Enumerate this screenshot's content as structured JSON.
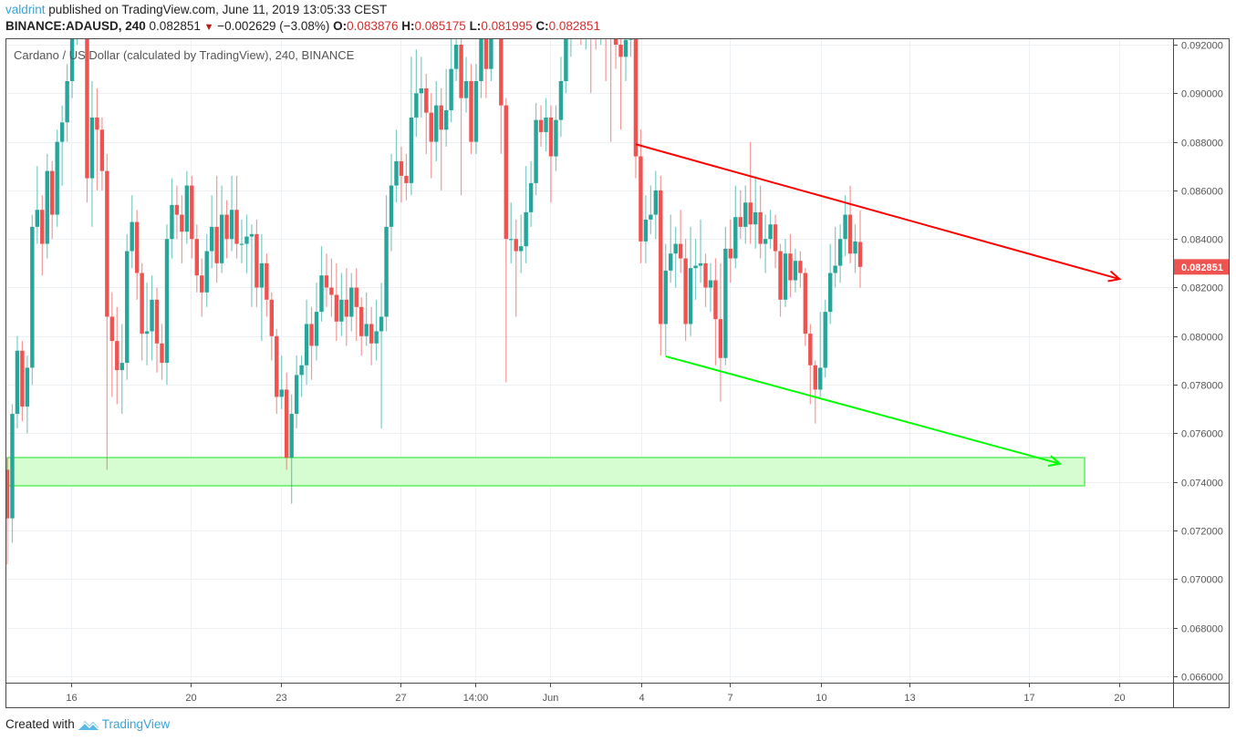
{
  "header": {
    "user": "valdrint",
    "published": "published on TradingView.com, June 11, 2019 13:05:33 CEST",
    "symbol": "BINANCE:ADAUSD, 240",
    "last": "0.082851",
    "change": "−0.002629 (−3.08%)",
    "o_label": "O:",
    "o_value": "0.083876",
    "h_label": "H:",
    "h_value": "0.085175",
    "l_label": "L:",
    "l_value": "0.081995",
    "c_label": "C:",
    "c_value": "0.082851",
    "down_icon": "triangle-down-icon"
  },
  "footer": {
    "created_with": "Created with",
    "brand": "TradingView"
  },
  "colors": {
    "up": "#26a69a",
    "down": "#ef5350",
    "grid": "#edf1f6",
    "last_price_bg": "#ef5350",
    "resistance": "#ff0000",
    "support": "#00ff00",
    "zone_fill": "#d6fcd2",
    "zone_border": "#5cef5c"
  },
  "chart_data": {
    "type": "candlestick",
    "title": "Cardano / US Dollar (calculated by TradingView), 240, BINANCE",
    "timeframe": "240",
    "ylim": [
      0.0655,
      0.0925
    ],
    "y_ticks": [
      "0.092000",
      "0.090000",
      "0.088000",
      "0.086000",
      "0.084000",
      "0.082000",
      "0.080000",
      "0.078000",
      "0.076000",
      "0.074000",
      "0.072000",
      "0.070000",
      "0.068000",
      "0.066000"
    ],
    "x_ticks": [
      {
        "label": "16",
        "index": 12.8
      },
      {
        "label": "20",
        "index": 36.8
      },
      {
        "label": "23",
        "index": 54.9
      },
      {
        "label": "27",
        "index": 78.8
      },
      {
        "label": "14:00",
        "index": 93.8
      },
      {
        "label": "Jun",
        "index": 108.8
      },
      {
        "label": "4",
        "index": 127.1
      },
      {
        "label": "7",
        "index": 144.8
      },
      {
        "label": "10",
        "index": 163.1
      },
      {
        "label": "13",
        "index": 180.9
      },
      {
        "label": "17",
        "index": 204.9
      },
      {
        "label": "20",
        "index": 223.0
      }
    ],
    "x_range": [
      -1,
      233
    ],
    "last_price_label": "0.082851",
    "candles_ohlc": [
      [
        0.0745,
        0.075,
        0.0706,
        0.0725
      ],
      [
        0.0725,
        0.0772,
        0.0715,
        0.0768
      ],
      [
        0.0768,
        0.08,
        0.0762,
        0.0794
      ],
      [
        0.0794,
        0.0798,
        0.0765,
        0.0771
      ],
      [
        0.0771,
        0.0792,
        0.076,
        0.0787
      ],
      [
        0.0787,
        0.085,
        0.078,
        0.0845
      ],
      [
        0.0845,
        0.087,
        0.0838,
        0.0852
      ],
      [
        0.0852,
        0.0858,
        0.0825,
        0.0838
      ],
      [
        0.0838,
        0.0875,
        0.0832,
        0.0868
      ],
      [
        0.0868,
        0.0872,
        0.084,
        0.085
      ],
      [
        0.085,
        0.0885,
        0.0845,
        0.088
      ],
      [
        0.088,
        0.0895,
        0.0862,
        0.0888
      ],
      [
        0.0888,
        0.0912,
        0.088,
        0.0905
      ],
      [
        0.0905,
        0.0938,
        0.0898,
        0.093
      ],
      [
        0.093,
        0.0958,
        0.092,
        0.095
      ],
      [
        0.095,
        0.0955,
        0.093,
        0.094
      ],
      [
        0.094,
        0.0945,
        0.0855,
        0.0865
      ],
      [
        0.0865,
        0.0905,
        0.0845,
        0.089
      ],
      [
        0.089,
        0.0902,
        0.086,
        0.0885
      ],
      [
        0.0885,
        0.089,
        0.086,
        0.0868
      ],
      [
        0.0868,
        0.0875,
        0.0745,
        0.0808
      ],
      [
        0.0808,
        0.0818,
        0.0775,
        0.0798
      ],
      [
        0.0798,
        0.0812,
        0.0772,
        0.0786
      ],
      [
        0.0786,
        0.0805,
        0.0768,
        0.0789
      ],
      [
        0.0789,
        0.0842,
        0.0782,
        0.0835
      ],
      [
        0.0835,
        0.0858,
        0.0828,
        0.0847
      ],
      [
        0.0847,
        0.0852,
        0.0815,
        0.0826
      ],
      [
        0.0826,
        0.083,
        0.079,
        0.0801
      ],
      [
        0.0801,
        0.0822,
        0.0788,
        0.0802
      ],
      [
        0.0802,
        0.0825,
        0.079,
        0.0815
      ],
      [
        0.0815,
        0.082,
        0.0785,
        0.0797
      ],
      [
        0.0797,
        0.0805,
        0.0782,
        0.0789
      ],
      [
        0.0789,
        0.0846,
        0.078,
        0.084
      ],
      [
        0.084,
        0.0865,
        0.0832,
        0.0854
      ],
      [
        0.0854,
        0.0862,
        0.084,
        0.085
      ],
      [
        0.085,
        0.0858,
        0.083,
        0.0843
      ],
      [
        0.0843,
        0.0868,
        0.0838,
        0.0862
      ],
      [
        0.0862,
        0.0866,
        0.0832,
        0.084
      ],
      [
        0.084,
        0.0846,
        0.0818,
        0.0825
      ],
      [
        0.0825,
        0.0832,
        0.0808,
        0.0818
      ],
      [
        0.0818,
        0.0842,
        0.0812,
        0.0835
      ],
      [
        0.0835,
        0.0858,
        0.0828,
        0.0845
      ],
      [
        0.0845,
        0.0866,
        0.0822,
        0.083
      ],
      [
        0.083,
        0.0862,
        0.0826,
        0.085
      ],
      [
        0.085,
        0.0856,
        0.0832,
        0.084
      ],
      [
        0.084,
        0.0866,
        0.0835,
        0.0852
      ],
      [
        0.0852,
        0.0866,
        0.0832,
        0.0838
      ],
      [
        0.0838,
        0.0848,
        0.083,
        0.0838
      ],
      [
        0.0838,
        0.085,
        0.0826,
        0.0841
      ],
      [
        0.0841,
        0.0846,
        0.0812,
        0.0842
      ],
      [
        0.0842,
        0.0848,
        0.0812,
        0.082
      ],
      [
        0.082,
        0.0842,
        0.0798,
        0.083
      ],
      [
        0.083,
        0.0834,
        0.0808,
        0.0815
      ],
      [
        0.0815,
        0.0818,
        0.079,
        0.08
      ],
      [
        0.08,
        0.0803,
        0.0768,
        0.0775
      ],
      [
        0.0775,
        0.0792,
        0.077,
        0.0778
      ],
      [
        0.0778,
        0.0785,
        0.0745,
        0.075
      ],
      [
        0.075,
        0.0776,
        0.0731,
        0.0768
      ],
      [
        0.0768,
        0.0792,
        0.0762,
        0.0784
      ],
      [
        0.0784,
        0.0792,
        0.0775,
        0.0788
      ],
      [
        0.0788,
        0.0815,
        0.078,
        0.0805
      ],
      [
        0.0805,
        0.0812,
        0.0782,
        0.0796
      ],
      [
        0.0796,
        0.0822,
        0.079,
        0.081
      ],
      [
        0.081,
        0.0837,
        0.0806,
        0.0825
      ],
      [
        0.0825,
        0.0834,
        0.0812,
        0.082
      ],
      [
        0.082,
        0.0832,
        0.0808,
        0.0817
      ],
      [
        0.0817,
        0.083,
        0.0798,
        0.0806
      ],
      [
        0.0806,
        0.0826,
        0.08,
        0.0815
      ],
      [
        0.0815,
        0.0828,
        0.0796,
        0.0808
      ],
      [
        0.0808,
        0.0826,
        0.0802,
        0.082
      ],
      [
        0.082,
        0.0828,
        0.0798,
        0.0812
      ],
      [
        0.0812,
        0.0816,
        0.0792,
        0.08
      ],
      [
        0.08,
        0.0818,
        0.0796,
        0.0805
      ],
      [
        0.0805,
        0.0812,
        0.0788,
        0.0797
      ],
      [
        0.0797,
        0.0815,
        0.079,
        0.0802
      ],
      [
        0.0802,
        0.0822,
        0.0762,
        0.0808
      ],
      [
        0.0808,
        0.0858,
        0.0802,
        0.0845
      ],
      [
        0.0845,
        0.0875,
        0.0835,
        0.0862
      ],
      [
        0.0862,
        0.0885,
        0.0855,
        0.0872
      ],
      [
        0.0872,
        0.0878,
        0.0855,
        0.0866
      ],
      [
        0.0866,
        0.0875,
        0.0856,
        0.0863
      ],
      [
        0.0863,
        0.0915,
        0.0858,
        0.089
      ],
      [
        0.089,
        0.0918,
        0.0882,
        0.09
      ],
      [
        0.09,
        0.0915,
        0.089,
        0.0902
      ],
      [
        0.0902,
        0.0908,
        0.0875,
        0.0892
      ],
      [
        0.0892,
        0.09,
        0.0865,
        0.088
      ],
      [
        0.088,
        0.0905,
        0.0872,
        0.0895
      ],
      [
        0.0895,
        0.0902,
        0.086,
        0.0885
      ],
      [
        0.0885,
        0.091,
        0.0878,
        0.0893
      ],
      [
        0.0893,
        0.0925,
        0.0888,
        0.091
      ],
      [
        0.091,
        0.0935,
        0.0905,
        0.092
      ],
      [
        0.092,
        0.0925,
        0.0858,
        0.0898
      ],
      [
        0.0898,
        0.0915,
        0.0892,
        0.0905
      ],
      [
        0.0905,
        0.0912,
        0.0875,
        0.088
      ],
      [
        0.088,
        0.0912,
        0.0875,
        0.0905
      ],
      [
        0.0905,
        0.0935,
        0.0898,
        0.0925
      ],
      [
        0.0925,
        0.093,
        0.0898,
        0.091
      ],
      [
        0.091,
        0.094,
        0.0905,
        0.093
      ],
      [
        0.093,
        0.0945,
        0.0925,
        0.0935
      ],
      [
        0.0935,
        0.094,
        0.0875,
        0.0895
      ],
      [
        0.0895,
        0.0898,
        0.0781,
        0.084
      ],
      [
        0.084,
        0.0855,
        0.083,
        0.084
      ],
      [
        0.084,
        0.0848,
        0.0808,
        0.0835
      ],
      [
        0.0835,
        0.085,
        0.0826,
        0.0837
      ],
      [
        0.0837,
        0.087,
        0.083,
        0.0851
      ],
      [
        0.0851,
        0.0872,
        0.0845,
        0.0863
      ],
      [
        0.0863,
        0.0896,
        0.0858,
        0.0889
      ],
      [
        0.0889,
        0.0895,
        0.0878,
        0.0884
      ],
      [
        0.0884,
        0.0898,
        0.0876,
        0.089
      ],
      [
        0.089,
        0.0895,
        0.0855,
        0.0874
      ],
      [
        0.0874,
        0.0895,
        0.0868,
        0.0889
      ],
      [
        0.0889,
        0.0915,
        0.0882,
        0.0905
      ],
      [
        0.0905,
        0.0935,
        0.09,
        0.0925
      ],
      [
        0.0925,
        0.0945,
        0.0915,
        0.0935
      ],
      [
        0.0935,
        0.095,
        0.0925,
        0.094
      ],
      [
        0.094,
        0.0945,
        0.092,
        0.093
      ],
      [
        0.093,
        0.095,
        0.0918,
        0.0945
      ],
      [
        0.0945,
        0.0948,
        0.09,
        0.0938
      ],
      [
        0.0938,
        0.0942,
        0.0918,
        0.0925
      ],
      [
        0.0925,
        0.094,
        0.092,
        0.0935
      ],
      [
        0.0935,
        0.094,
        0.0905,
        0.093
      ],
      [
        0.093,
        0.0935,
        0.088,
        0.0925
      ],
      [
        0.0925,
        0.093,
        0.091,
        0.092
      ],
      [
        0.092,
        0.0928,
        0.0885,
        0.0915
      ],
      [
        0.0915,
        0.0928,
        0.0905,
        0.0922
      ],
      [
        0.0922,
        0.0935,
        0.0915,
        0.0925
      ],
      [
        0.0925,
        0.0928,
        0.0865,
        0.0874
      ],
      [
        0.0874,
        0.0885,
        0.083,
        0.0839
      ],
      [
        0.0839,
        0.0858,
        0.083,
        0.0848
      ],
      [
        0.0848,
        0.0862,
        0.0842,
        0.085
      ],
      [
        0.085,
        0.0868,
        0.084,
        0.086
      ],
      [
        0.086,
        0.0866,
        0.0792,
        0.0805
      ],
      [
        0.0805,
        0.0838,
        0.0792,
        0.0827
      ],
      [
        0.0827,
        0.085,
        0.0822,
        0.0834
      ],
      [
        0.0834,
        0.0845,
        0.082,
        0.0838
      ],
      [
        0.0838,
        0.0852,
        0.0826,
        0.0832
      ],
      [
        0.0832,
        0.084,
        0.0798,
        0.0805
      ],
      [
        0.0805,
        0.0845,
        0.08,
        0.0828
      ],
      [
        0.0828,
        0.084,
        0.0815,
        0.0829
      ],
      [
        0.0829,
        0.0848,
        0.0822,
        0.083
      ],
      [
        0.083,
        0.0834,
        0.0812,
        0.082
      ],
      [
        0.082,
        0.083,
        0.081,
        0.0823
      ],
      [
        0.0823,
        0.0832,
        0.0788,
        0.0807
      ],
      [
        0.0807,
        0.083,
        0.0773,
        0.0791
      ],
      [
        0.0791,
        0.0845,
        0.0788,
        0.0836
      ],
      [
        0.0836,
        0.0848,
        0.0822,
        0.0832
      ],
      [
        0.0832,
        0.0862,
        0.0828,
        0.0849
      ],
      [
        0.0849,
        0.086,
        0.084,
        0.0845
      ],
      [
        0.0845,
        0.0862,
        0.0838,
        0.0855
      ],
      [
        0.0855,
        0.088,
        0.0838,
        0.0846
      ],
      [
        0.0846,
        0.0866,
        0.0836,
        0.0851
      ],
      [
        0.0851,
        0.0862,
        0.0832,
        0.0838
      ],
      [
        0.0838,
        0.085,
        0.0826,
        0.084
      ],
      [
        0.084,
        0.0852,
        0.0836,
        0.0846
      ],
      [
        0.0846,
        0.085,
        0.0828,
        0.0835
      ],
      [
        0.0835,
        0.0838,
        0.0808,
        0.0815
      ],
      [
        0.0815,
        0.084,
        0.0812,
        0.0834
      ],
      [
        0.0834,
        0.0842,
        0.0816,
        0.0823
      ],
      [
        0.0823,
        0.0836,
        0.0818,
        0.0831
      ],
      [
        0.0831,
        0.0835,
        0.082,
        0.0826
      ],
      [
        0.0826,
        0.0828,
        0.0796,
        0.0801
      ],
      [
        0.0801,
        0.0805,
        0.0772,
        0.0788
      ],
      [
        0.0788,
        0.079,
        0.0764,
        0.0778
      ],
      [
        0.0778,
        0.081,
        0.0775,
        0.0787
      ],
      [
        0.0787,
        0.0815,
        0.0783,
        0.081
      ],
      [
        0.081,
        0.0838,
        0.0805,
        0.0826
      ],
      [
        0.0826,
        0.0845,
        0.082,
        0.0829
      ],
      [
        0.0829,
        0.0846,
        0.0822,
        0.084
      ],
      [
        0.084,
        0.0858,
        0.0833,
        0.085
      ],
      [
        0.085,
        0.0862,
        0.083,
        0.0834
      ],
      [
        0.0834,
        0.0846,
        0.0826,
        0.0839
      ],
      [
        0.083876,
        0.085175,
        0.081995,
        0.082851
      ]
    ],
    "annotations": [
      {
        "type": "arrow-line",
        "name": "resistance-trendline",
        "from": {
          "index": 126,
          "price": 0.0879
        },
        "to": {
          "index": 223,
          "price": 0.08235
        }
      },
      {
        "type": "arrow-line",
        "name": "support-trendline",
        "from": {
          "index": 132,
          "price": 0.07917
        },
        "to": {
          "index": 211,
          "price": 0.07475
        }
      },
      {
        "type": "zone",
        "name": "support-zone",
        "from_index": 0,
        "to_index": 216,
        "price_low": 0.07384,
        "price_high": 0.075
      }
    ],
    "grid": true,
    "legend": "none"
  }
}
